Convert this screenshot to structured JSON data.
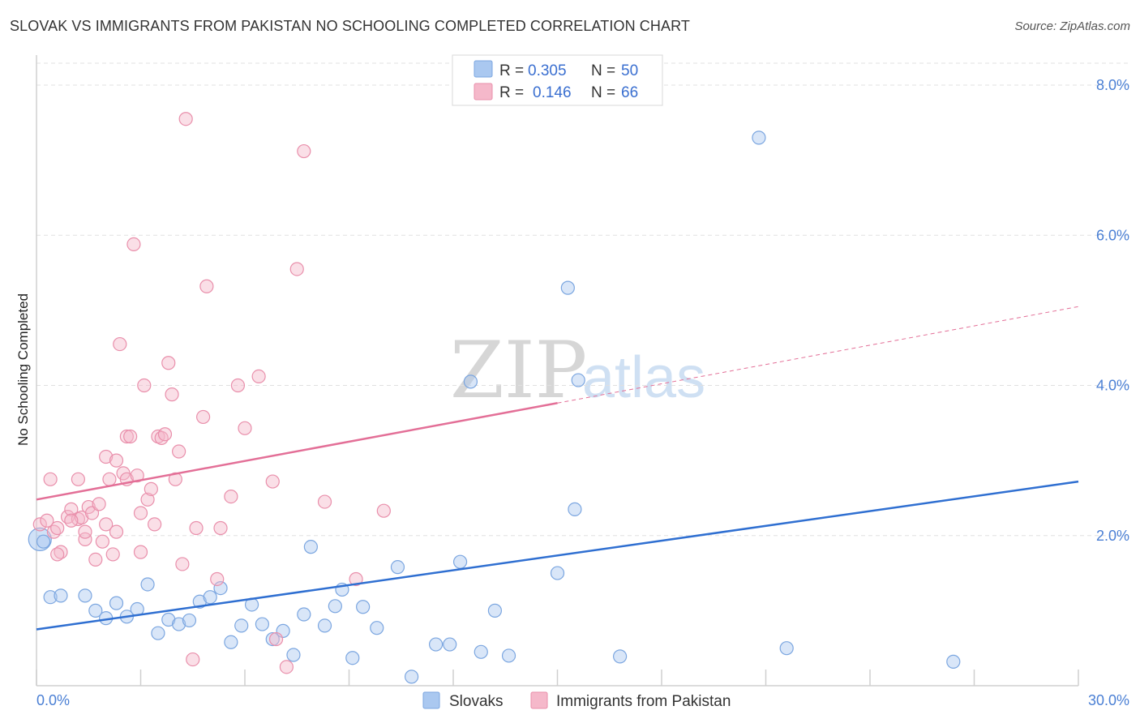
{
  "title": "SLOVAK VS IMMIGRANTS FROM PAKISTAN NO SCHOOLING COMPLETED CORRELATION CHART",
  "source": "Source: ZipAtlas.com",
  "watermark": {
    "part1": "ZIP",
    "part2": "atlas"
  },
  "colors": {
    "blue_fill": "#aac8f0",
    "blue_stroke": "#7ba6e0",
    "blue_line": "#2f6fd1",
    "pink_fill": "#f5b8ca",
    "pink_stroke": "#e98fab",
    "pink_line": "#e36f97",
    "tick_text": "#4a7fd4",
    "grid": "#e0e0e0"
  },
  "legend": {
    "series1": {
      "r_label": "R =",
      "r_value": "0.305",
      "n_label": "N =",
      "n_value": "50"
    },
    "series2": {
      "r_label": "R =",
      "r_value": "0.146",
      "n_label": "N =",
      "n_value": "66"
    }
  },
  "chart_data": {
    "type": "scatter",
    "title": "SLOVAK VS IMMIGRANTS FROM PAKISTAN NO SCHOOLING COMPLETED CORRELATION CHART",
    "xlabel": "",
    "ylabel": "No Schooling Completed",
    "xlim": [
      0,
      30
    ],
    "ylim": [
      0,
      8.4
    ],
    "x_tick_labels": [
      "0.0%",
      "30.0%"
    ],
    "y_ticks": [
      2,
      4,
      6,
      8
    ],
    "y_tick_labels": [
      "2.0%",
      "4.0%",
      "6.0%",
      "8.0%"
    ],
    "legend_position": "top-center",
    "bottom_legend": [
      "Slovaks",
      "Immigrants from Pakistan"
    ],
    "series": [
      {
        "name": "Slovaks",
        "color": "#aac8f0",
        "trend": {
          "x": [
            0,
            30
          ],
          "y": [
            0.75,
            2.72
          ],
          "dashed_from": null
        },
        "points": [
          [
            0.1,
            1.95
          ],
          [
            0.4,
            1.18
          ],
          [
            0.7,
            1.2
          ],
          [
            1.4,
            1.2
          ],
          [
            1.7,
            1.0
          ],
          [
            2.0,
            0.9
          ],
          [
            2.3,
            1.1
          ],
          [
            2.6,
            0.92
          ],
          [
            2.9,
            1.02
          ],
          [
            3.2,
            1.35
          ],
          [
            3.5,
            0.7
          ],
          [
            3.8,
            0.88
          ],
          [
            4.1,
            0.82
          ],
          [
            4.4,
            0.87
          ],
          [
            4.7,
            1.12
          ],
          [
            5.0,
            1.18
          ],
          [
            5.3,
            1.3
          ],
          [
            5.6,
            0.58
          ],
          [
            5.9,
            0.8
          ],
          [
            6.2,
            1.08
          ],
          [
            6.5,
            0.82
          ],
          [
            6.8,
            0.62
          ],
          [
            7.1,
            0.73
          ],
          [
            7.4,
            0.41
          ],
          [
            7.7,
            0.95
          ],
          [
            7.9,
            1.85
          ],
          [
            8.3,
            0.8
          ],
          [
            8.6,
            1.06
          ],
          [
            8.8,
            1.28
          ],
          [
            9.1,
            0.37
          ],
          [
            9.4,
            1.05
          ],
          [
            9.8,
            0.77
          ],
          [
            10.4,
            1.58
          ],
          [
            10.8,
            0.12
          ],
          [
            11.5,
            0.55
          ],
          [
            11.9,
            0.55
          ],
          [
            12.2,
            1.65
          ],
          [
            12.5,
            4.05
          ],
          [
            12.8,
            0.45
          ],
          [
            13.2,
            1.0
          ],
          [
            13.6,
            0.4
          ],
          [
            15.0,
            1.5
          ],
          [
            15.3,
            5.3
          ],
          [
            15.5,
            2.35
          ],
          [
            15.6,
            4.07
          ],
          [
            16.8,
            0.39
          ],
          [
            20.8,
            7.3
          ],
          [
            21.6,
            0.5
          ],
          [
            26.4,
            0.32
          ],
          [
            0.2,
            1.92
          ]
        ]
      },
      {
        "name": "Immigrants from Pakistan",
        "color": "#f5b8ca",
        "trend": {
          "x": [
            0,
            30
          ],
          "y": [
            2.48,
            5.05
          ],
          "dashed_from": 15.0
        },
        "points": [
          [
            0.1,
            2.15
          ],
          [
            0.3,
            2.2
          ],
          [
            0.4,
            2.75
          ],
          [
            0.5,
            2.05
          ],
          [
            0.6,
            2.1
          ],
          [
            0.7,
            1.78
          ],
          [
            0.9,
            2.25
          ],
          [
            1.0,
            2.35
          ],
          [
            1.2,
            2.22
          ],
          [
            1.2,
            2.75
          ],
          [
            1.3,
            2.24
          ],
          [
            1.4,
            1.95
          ],
          [
            1.5,
            2.38
          ],
          [
            1.6,
            2.3
          ],
          [
            1.7,
            1.68
          ],
          [
            1.8,
            2.42
          ],
          [
            1.9,
            1.92
          ],
          [
            2.0,
            2.15
          ],
          [
            2.0,
            3.05
          ],
          [
            2.1,
            2.75
          ],
          [
            2.3,
            2.05
          ],
          [
            2.3,
            3.0
          ],
          [
            2.4,
            4.55
          ],
          [
            2.5,
            2.83
          ],
          [
            2.6,
            3.32
          ],
          [
            2.6,
            2.75
          ],
          [
            2.7,
            3.32
          ],
          [
            2.8,
            5.88
          ],
          [
            2.9,
            2.8
          ],
          [
            3.0,
            1.78
          ],
          [
            3.1,
            4.0
          ],
          [
            3.2,
            2.48
          ],
          [
            3.3,
            2.62
          ],
          [
            3.4,
            2.15
          ],
          [
            3.5,
            3.32
          ],
          [
            3.6,
            3.3
          ],
          [
            3.7,
            3.35
          ],
          [
            3.8,
            4.3
          ],
          [
            3.9,
            3.88
          ],
          [
            4.0,
            2.75
          ],
          [
            4.1,
            3.12
          ],
          [
            4.2,
            1.62
          ],
          [
            4.3,
            7.55
          ],
          [
            4.5,
            0.35
          ],
          [
            4.6,
            2.1
          ],
          [
            4.8,
            3.58
          ],
          [
            4.9,
            5.32
          ],
          [
            5.2,
            1.42
          ],
          [
            5.3,
            2.1
          ],
          [
            5.6,
            2.52
          ],
          [
            5.8,
            4.0
          ],
          [
            6.0,
            3.43
          ],
          [
            6.4,
            4.12
          ],
          [
            6.8,
            2.72
          ],
          [
            6.9,
            0.62
          ],
          [
            7.2,
            0.25
          ],
          [
            7.5,
            5.55
          ],
          [
            7.7,
            7.12
          ],
          [
            8.3,
            2.45
          ],
          [
            9.2,
            1.42
          ],
          [
            10.0,
            2.33
          ],
          [
            0.6,
            1.75
          ],
          [
            1.0,
            2.2
          ],
          [
            1.4,
            2.05
          ],
          [
            2.2,
            1.75
          ],
          [
            3.0,
            2.3
          ]
        ]
      }
    ]
  }
}
